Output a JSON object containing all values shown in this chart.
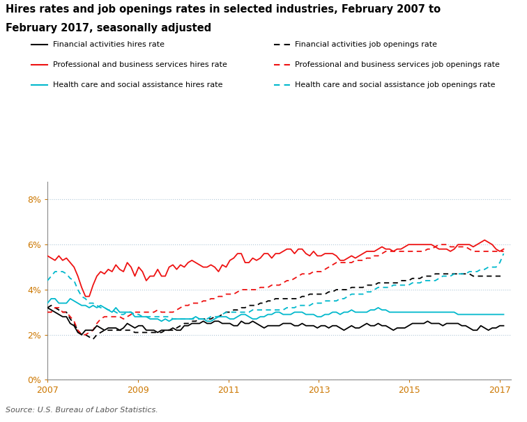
{
  "title_line1": "Hires rates and job openings rates in selected industries, February 2007 to",
  "title_line2": "February 2017, seasonally adjusted",
  "source": "Source: U.S. Bureau of Labor Statistics.",
  "ylim": [
    0,
    0.088
  ],
  "yticks": [
    0,
    0.02,
    0.04,
    0.06,
    0.08
  ],
  "ytick_labels": [
    "0%",
    "2%",
    "4%",
    "6%",
    "8%"
  ],
  "xlim_start": 2007.0,
  "xlim_end": 2017.25,
  "xticks": [
    2007,
    2009,
    2011,
    2013,
    2015,
    2017
  ],
  "colors": {
    "financial": "#000000",
    "professional": "#ee1111",
    "healthcare": "#00b8cc"
  },
  "legend_col1": [
    {
      "label": "Financial activities hires rate",
      "color": "#000000",
      "dashes": false
    },
    {
      "label": "Professional and business services hires rate",
      "color": "#ee1111",
      "dashes": false
    },
    {
      "label": "Health care and social assistance hires rate",
      "color": "#00b8cc",
      "dashes": false
    }
  ],
  "legend_col2": [
    {
      "label": "Financial activities job openings rate",
      "color": "#000000",
      "dashes": true
    },
    {
      "label": "Professional and business services job openings rate",
      "color": "#ee1111",
      "dashes": true
    },
    {
      "label": "Health care and social assistance job openings rate",
      "color": "#00b8cc",
      "dashes": true
    }
  ],
  "financial_hires": [
    0.032,
    0.031,
    0.03,
    0.029,
    0.028,
    0.028,
    0.025,
    0.024,
    0.021,
    0.02,
    0.022,
    0.022,
    0.022,
    0.024,
    0.023,
    0.022,
    0.023,
    0.023,
    0.023,
    0.022,
    0.023,
    0.025,
    0.024,
    0.023,
    0.024,
    0.024,
    0.022,
    0.022,
    0.022,
    0.021,
    0.022,
    0.022,
    0.022,
    0.023,
    0.022,
    0.022,
    0.024,
    0.024,
    0.025,
    0.025,
    0.025,
    0.026,
    0.025,
    0.025,
    0.026,
    0.026,
    0.025,
    0.025,
    0.025,
    0.024,
    0.024,
    0.026,
    0.025,
    0.025,
    0.026,
    0.025,
    0.024,
    0.023,
    0.024,
    0.024,
    0.024,
    0.024,
    0.025,
    0.025,
    0.025,
    0.024,
    0.024,
    0.025,
    0.024,
    0.024,
    0.024,
    0.023,
    0.024,
    0.024,
    0.023,
    0.024,
    0.024,
    0.023,
    0.022,
    0.023,
    0.024,
    0.023,
    0.023,
    0.024,
    0.025,
    0.024,
    0.024,
    0.025,
    0.024,
    0.024,
    0.023,
    0.022,
    0.023,
    0.023,
    0.023,
    0.024,
    0.025,
    0.025,
    0.025,
    0.025,
    0.026,
    0.025,
    0.025,
    0.025,
    0.024,
    0.025,
    0.025,
    0.025,
    0.025,
    0.024,
    0.024,
    0.023,
    0.022,
    0.022,
    0.024,
    0.023,
    0.022,
    0.023,
    0.023,
    0.024,
    0.024
  ],
  "financial_openings": [
    0.032,
    0.033,
    0.032,
    0.031,
    0.03,
    0.03,
    0.027,
    0.025,
    0.022,
    0.02,
    0.02,
    0.019,
    0.018,
    0.02,
    0.021,
    0.022,
    0.022,
    0.022,
    0.022,
    0.022,
    0.022,
    0.022,
    0.022,
    0.021,
    0.021,
    0.021,
    0.021,
    0.021,
    0.021,
    0.021,
    0.021,
    0.022,
    0.022,
    0.022,
    0.023,
    0.024,
    0.025,
    0.025,
    0.026,
    0.026,
    0.027,
    0.027,
    0.027,
    0.027,
    0.028,
    0.028,
    0.029,
    0.03,
    0.03,
    0.031,
    0.031,
    0.032,
    0.032,
    0.033,
    0.033,
    0.033,
    0.034,
    0.034,
    0.035,
    0.035,
    0.036,
    0.036,
    0.036,
    0.036,
    0.036,
    0.036,
    0.036,
    0.037,
    0.037,
    0.038,
    0.038,
    0.038,
    0.038,
    0.038,
    0.039,
    0.039,
    0.04,
    0.04,
    0.04,
    0.04,
    0.041,
    0.041,
    0.041,
    0.041,
    0.042,
    0.042,
    0.042,
    0.043,
    0.043,
    0.043,
    0.043,
    0.043,
    0.043,
    0.044,
    0.044,
    0.044,
    0.045,
    0.045,
    0.045,
    0.046,
    0.046,
    0.046,
    0.047,
    0.047,
    0.047,
    0.047,
    0.047,
    0.047,
    0.047,
    0.047,
    0.047,
    0.047,
    0.046,
    0.046,
    0.046,
    0.046,
    0.046,
    0.046,
    0.046,
    0.046,
    0.046
  ],
  "professional_hires": [
    0.055,
    0.054,
    0.053,
    0.055,
    0.053,
    0.054,
    0.052,
    0.05,
    0.046,
    0.041,
    0.037,
    0.037,
    0.042,
    0.046,
    0.048,
    0.047,
    0.049,
    0.048,
    0.051,
    0.049,
    0.048,
    0.052,
    0.05,
    0.046,
    0.05,
    0.048,
    0.044,
    0.046,
    0.046,
    0.049,
    0.046,
    0.046,
    0.05,
    0.051,
    0.049,
    0.051,
    0.05,
    0.052,
    0.053,
    0.052,
    0.051,
    0.05,
    0.05,
    0.051,
    0.05,
    0.048,
    0.051,
    0.05,
    0.053,
    0.054,
    0.056,
    0.056,
    0.052,
    0.052,
    0.054,
    0.053,
    0.054,
    0.056,
    0.056,
    0.054,
    0.056,
    0.056,
    0.057,
    0.058,
    0.058,
    0.056,
    0.058,
    0.058,
    0.056,
    0.055,
    0.057,
    0.055,
    0.055,
    0.056,
    0.056,
    0.056,
    0.055,
    0.053,
    0.053,
    0.054,
    0.055,
    0.054,
    0.055,
    0.056,
    0.057,
    0.057,
    0.057,
    0.058,
    0.059,
    0.058,
    0.058,
    0.057,
    0.058,
    0.058,
    0.059,
    0.06,
    0.06,
    0.06,
    0.06,
    0.06,
    0.06,
    0.06,
    0.059,
    0.058,
    0.058,
    0.058,
    0.057,
    0.058,
    0.06,
    0.06,
    0.06,
    0.06,
    0.059,
    0.06,
    0.061,
    0.062,
    0.061,
    0.06,
    0.058,
    0.057,
    0.058
  ],
  "professional_openings": [
    0.03,
    0.03,
    0.032,
    0.032,
    0.03,
    0.03,
    0.028,
    0.026,
    0.022,
    0.02,
    0.02,
    0.021,
    0.022,
    0.025,
    0.027,
    0.028,
    0.028,
    0.028,
    0.028,
    0.028,
    0.027,
    0.028,
    0.029,
    0.03,
    0.03,
    0.03,
    0.03,
    0.03,
    0.03,
    0.031,
    0.03,
    0.03,
    0.03,
    0.03,
    0.031,
    0.032,
    0.033,
    0.033,
    0.034,
    0.034,
    0.034,
    0.035,
    0.035,
    0.036,
    0.036,
    0.037,
    0.037,
    0.038,
    0.038,
    0.038,
    0.039,
    0.04,
    0.04,
    0.04,
    0.04,
    0.04,
    0.041,
    0.041,
    0.041,
    0.042,
    0.042,
    0.042,
    0.043,
    0.044,
    0.044,
    0.045,
    0.046,
    0.047,
    0.047,
    0.047,
    0.048,
    0.048,
    0.048,
    0.049,
    0.05,
    0.051,
    0.052,
    0.052,
    0.052,
    0.052,
    0.052,
    0.053,
    0.053,
    0.053,
    0.054,
    0.054,
    0.055,
    0.055,
    0.056,
    0.057,
    0.057,
    0.057,
    0.057,
    0.057,
    0.057,
    0.057,
    0.057,
    0.057,
    0.057,
    0.057,
    0.058,
    0.058,
    0.059,
    0.06,
    0.06,
    0.06,
    0.059,
    0.059,
    0.059,
    0.059,
    0.059,
    0.058,
    0.057,
    0.057,
    0.057,
    0.057,
    0.057,
    0.057,
    0.057,
    0.057,
    0.057
  ],
  "healthcare_hires": [
    0.034,
    0.036,
    0.036,
    0.034,
    0.034,
    0.034,
    0.036,
    0.035,
    0.034,
    0.033,
    0.033,
    0.032,
    0.033,
    0.032,
    0.033,
    0.032,
    0.031,
    0.03,
    0.032,
    0.03,
    0.03,
    0.03,
    0.03,
    0.028,
    0.028,
    0.028,
    0.028,
    0.027,
    0.027,
    0.027,
    0.026,
    0.027,
    0.026,
    0.027,
    0.027,
    0.027,
    0.027,
    0.027,
    0.027,
    0.028,
    0.027,
    0.027,
    0.026,
    0.026,
    0.027,
    0.028,
    0.028,
    0.028,
    0.027,
    0.027,
    0.028,
    0.029,
    0.029,
    0.028,
    0.027,
    0.027,
    0.028,
    0.028,
    0.029,
    0.029,
    0.03,
    0.03,
    0.029,
    0.029,
    0.029,
    0.03,
    0.03,
    0.03,
    0.029,
    0.029,
    0.029,
    0.028,
    0.028,
    0.029,
    0.029,
    0.03,
    0.03,
    0.029,
    0.03,
    0.03,
    0.031,
    0.03,
    0.03,
    0.03,
    0.03,
    0.031,
    0.031,
    0.032,
    0.031,
    0.031,
    0.03,
    0.03,
    0.03,
    0.03,
    0.03,
    0.03,
    0.03,
    0.03,
    0.03,
    0.03,
    0.03,
    0.03,
    0.03,
    0.03,
    0.03,
    0.03,
    0.03,
    0.03,
    0.029,
    0.029,
    0.029,
    0.029,
    0.029,
    0.029,
    0.029,
    0.029,
    0.029,
    0.029,
    0.029,
    0.029,
    0.029
  ],
  "healthcare_openings": [
    0.044,
    0.046,
    0.048,
    0.048,
    0.048,
    0.047,
    0.045,
    0.044,
    0.04,
    0.037,
    0.036,
    0.034,
    0.034,
    0.033,
    0.032,
    0.032,
    0.031,
    0.031,
    0.03,
    0.029,
    0.029,
    0.03,
    0.03,
    0.029,
    0.029,
    0.028,
    0.028,
    0.028,
    0.028,
    0.028,
    0.028,
    0.028,
    0.028,
    0.027,
    0.027,
    0.027,
    0.027,
    0.027,
    0.027,
    0.027,
    0.027,
    0.027,
    0.027,
    0.028,
    0.028,
    0.028,
    0.029,
    0.03,
    0.03,
    0.03,
    0.03,
    0.03,
    0.03,
    0.03,
    0.031,
    0.031,
    0.031,
    0.031,
    0.031,
    0.031,
    0.031,
    0.031,
    0.031,
    0.032,
    0.032,
    0.032,
    0.033,
    0.033,
    0.033,
    0.033,
    0.034,
    0.034,
    0.034,
    0.035,
    0.035,
    0.035,
    0.035,
    0.036,
    0.036,
    0.037,
    0.038,
    0.038,
    0.038,
    0.038,
    0.039,
    0.039,
    0.04,
    0.041,
    0.041,
    0.041,
    0.041,
    0.042,
    0.042,
    0.042,
    0.042,
    0.042,
    0.043,
    0.043,
    0.043,
    0.044,
    0.044,
    0.044,
    0.044,
    0.045,
    0.046,
    0.046,
    0.046,
    0.047,
    0.047,
    0.047,
    0.047,
    0.048,
    0.048,
    0.048,
    0.049,
    0.049,
    0.05,
    0.05,
    0.05,
    0.052,
    0.056
  ]
}
